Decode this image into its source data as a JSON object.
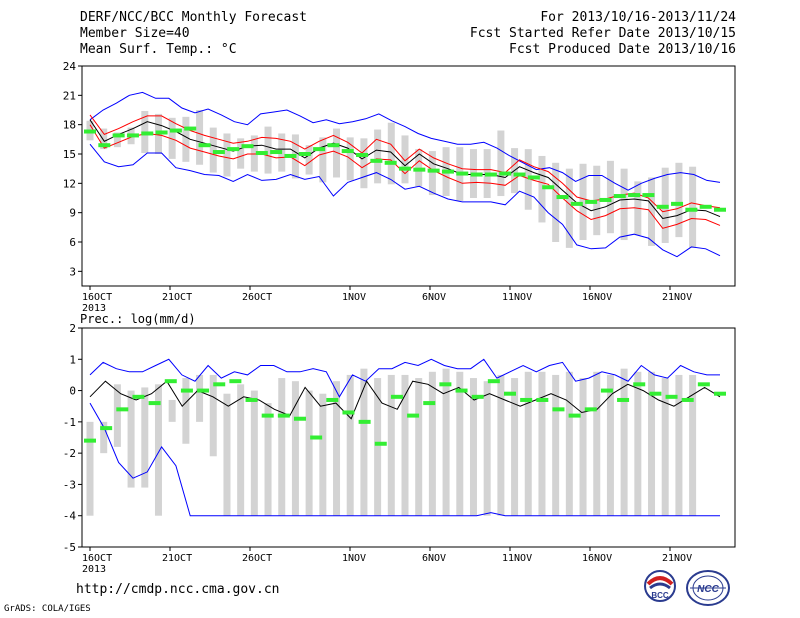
{
  "header": {
    "left": [
      "DERF/NCC/BCC Monthly Forecast",
      "Member Size=40",
      "Mean Surf. Temp.: °C"
    ],
    "right": [
      "For 2013/10/16-2013/11/24",
      "Fcst Started Refer Date 2013/10/15",
      "Fcst Produced Date 2013/10/16"
    ]
  },
  "footer": {
    "url": "http://cmdp.ncc.cma.gov.cn",
    "grads": "GrADS: COLA/IGES",
    "logo_left_text": "BCC",
    "logo_right_text": "NCC"
  },
  "colors": {
    "envelope": "#0000ff",
    "spread": "#ff0000",
    "mean": "#000000",
    "box": "#d3d3d3",
    "marker": "#33ee33"
  },
  "chart_data": [
    {
      "type": "box-line",
      "title": "Mean Surf. Temp.: °C",
      "x_tick_labels": [
        "16OCT\n2013",
        "21OCT",
        "26OCT",
        "1NOV",
        "6NOV",
        "11NOV",
        "16NOV",
        "21NOV"
      ],
      "y_ticks": [
        3,
        6,
        9,
        12,
        15,
        18,
        21,
        24
      ],
      "ylim": [
        1.5,
        24
      ],
      "days": 40,
      "series": [
        {
          "name": "max",
          "values": [
            18.5,
            19.5,
            20.2,
            21.0,
            21.3,
            20.7,
            20.7,
            19.7,
            19.2,
            19.6,
            19.0,
            18.3,
            18.0,
            19.1,
            19.3,
            19.5,
            18.9,
            18.2,
            18.5,
            18.1,
            18.3,
            18.6,
            19.1,
            18.4,
            17.8,
            17.1,
            16.6,
            16.3,
            16.0,
            16.0,
            16.2,
            15.6,
            14.8,
            14.1,
            13.4,
            13.6,
            13.1,
            12.2,
            12.8,
            12.8,
            12.0,
            11.3,
            12.0,
            12.5,
            12.9,
            13.1,
            12.9,
            12.3,
            12.1
          ]
        },
        {
          "name": "upper",
          "values": [
            19.0,
            17.0,
            17.6,
            18.3,
            18.9,
            18.9,
            18.1,
            17.4,
            16.9,
            16.5,
            16.1,
            16.3,
            16.7,
            16.6,
            16.3,
            15.5,
            16.3,
            16.9,
            16.2,
            15.1,
            16.5,
            16.0,
            14.3,
            15.5,
            14.6,
            14.0,
            13.5,
            13.4,
            13.4,
            13.1,
            14.4,
            13.7,
            13.2,
            12.0,
            10.6,
            10.2,
            10.4,
            10.8,
            11.0,
            10.5,
            9.1,
            9.4,
            10.0,
            9.7,
            9.5
          ]
        },
        {
          "name": "mean",
          "values": [
            18.5,
            16.3,
            17.0,
            17.6,
            18.3,
            17.9,
            17.3,
            16.5,
            16.1,
            15.7,
            15.3,
            15.8,
            15.9,
            15.5,
            15.5,
            14.6,
            15.6,
            16.1,
            15.6,
            14.5,
            15.4,
            15.2,
            13.8,
            15.0,
            14.0,
            13.5,
            12.9,
            12.9,
            12.9,
            12.6,
            13.7,
            13.1,
            12.6,
            11.3,
            10.0,
            9.2,
            9.6,
            10.3,
            10.4,
            10.2,
            8.4,
            8.7,
            9.3,
            9.2,
            8.6
          ]
        },
        {
          "name": "lower",
          "values": [
            18.0,
            15.6,
            16.2,
            16.8,
            17.1,
            16.9,
            16.4,
            15.6,
            15.2,
            14.8,
            14.5,
            15.0,
            15.0,
            14.6,
            14.7,
            13.8,
            14.9,
            15.3,
            14.7,
            13.6,
            14.5,
            14.4,
            13.0,
            14.3,
            13.3,
            12.6,
            12.0,
            12.1,
            12.0,
            11.8,
            12.8,
            12.3,
            11.9,
            10.5,
            9.2,
            8.3,
            8.7,
            9.4,
            9.5,
            9.3,
            7.4,
            7.8,
            8.4,
            8.3,
            7.7
          ]
        },
        {
          "name": "min",
          "values": [
            16.0,
            14.2,
            13.7,
            13.9,
            15.1,
            15.1,
            13.6,
            13.3,
            12.9,
            12.8,
            12.2,
            12.9,
            12.3,
            12.4,
            12.9,
            12.4,
            12.7,
            10.7,
            12.1,
            12.6,
            13.1,
            12.4,
            11.4,
            11.7,
            11.0,
            10.4,
            10.1,
            10.1,
            10.1,
            9.8,
            11.2,
            10.6,
            9.0,
            7.8,
            5.7,
            5.3,
            5.4,
            6.5,
            6.8,
            6.4,
            5.2,
            4.5,
            5.5,
            5.3,
            4.6
          ]
        },
        {
          "name": "box_top",
          "values": [
            18.4,
            17.6,
            17.2,
            17.7,
            19.4,
            19.1,
            18.7,
            18.8,
            19.5,
            17.7,
            17.1,
            16.6,
            16.9,
            17.8,
            17.1,
            17.0,
            15.9,
            16.7,
            17.6,
            16.7,
            16.6,
            17.5,
            18.2,
            16.9,
            15.5,
            15.3,
            15.7,
            15.7,
            15.5,
            15.5,
            17.4,
            15.6,
            15.5,
            14.8,
            14.1,
            13.5,
            14.0,
            13.8,
            14.3,
            13.5,
            12.2,
            12.6,
            13.6,
            14.1,
            13.7,
            13.9,
            11.5
          ]
        },
        {
          "name": "box_bottom",
          "values": [
            16.4,
            15.5,
            15.7,
            16.0,
            15.1,
            15.0,
            14.5,
            14.2,
            13.9,
            13.1,
            12.7,
            13.5,
            13.2,
            13.0,
            13.2,
            12.5,
            12.9,
            12.1,
            12.6,
            12.3,
            11.5,
            12.0,
            11.9,
            12.0,
            11.7,
            10.8,
            10.7,
            10.2,
            10.5,
            10.5,
            10.7,
            11.0,
            9.3,
            8.0,
            6.0,
            5.4,
            6.2,
            6.7,
            6.9,
            6.2,
            6.7,
            5.6,
            5.9,
            6.5,
            5.4
          ]
        },
        {
          "name": "marker",
          "values": [
            17.3,
            15.9,
            16.9,
            16.9,
            17.1,
            17.2,
            17.4,
            17.6,
            15.9,
            15.2,
            15.5,
            15.8,
            15.1,
            15.2,
            14.8,
            15.0,
            15.5,
            15.9,
            15.3,
            14.9,
            14.3,
            14.1,
            13.5,
            13.4,
            13.3,
            13.2,
            13.0,
            12.9,
            12.9,
            13.0,
            12.9,
            12.6,
            11.6,
            10.6,
            9.9,
            10.1,
            10.3,
            10.7,
            10.8,
            10.8,
            9.6,
            9.9,
            9.3,
            9.6,
            9.3
          ]
        }
      ]
    },
    {
      "type": "box-line",
      "title": "Prec.: log(mm/d)",
      "x_tick_labels": [
        "16OCT\n2013",
        "21OCT",
        "26OCT",
        "1NOV",
        "6NOV",
        "11NOV",
        "16NOV",
        "21NOV"
      ],
      "y_ticks": [
        -5,
        -4,
        -3,
        -2,
        -1,
        0,
        1,
        2
      ],
      "ylim": [
        -5,
        2
      ],
      "days": 40,
      "series": [
        {
          "name": "max",
          "values": [
            0.5,
            0.9,
            0.7,
            0.6,
            0.6,
            0.8,
            1.0,
            0.5,
            0.3,
            0.8,
            0.4,
            0.6,
            0.5,
            0.8,
            0.8,
            0.6,
            0.6,
            0.7,
            0.6,
            -0.2,
            0.5,
            0.3,
            0.7,
            0.7,
            0.9,
            0.8,
            1.0,
            0.8,
            0.7,
            0.7,
            1.0,
            0.4,
            0.6,
            0.8,
            0.6,
            0.8,
            0.9,
            0.3,
            0.4,
            0.6,
            0.5,
            0.3,
            0.8,
            0.5,
            0.4,
            0.8,
            0.6,
            0.5,
            0.5
          ]
        },
        {
          "name": "mean",
          "values": [
            -0.2,
            0.3,
            -0.1,
            -0.3,
            -0.1,
            0.3,
            -0.5,
            0.0,
            -0.2,
            -0.5,
            -0.2,
            -0.3,
            -0.6,
            -0.8,
            0.1,
            -0.5,
            -0.4,
            -0.9,
            0.3,
            -0.4,
            -0.6,
            0.3,
            0.2,
            -0.1,
            0.1,
            -0.3,
            -0.1,
            -0.3,
            -0.5,
            -0.3,
            -0.1,
            -0.3,
            -0.7,
            -0.6,
            -0.1,
            0.2,
            0.0,
            -0.3,
            -0.5,
            -0.2,
            0.1,
            -0.2
          ]
        },
        {
          "name": "min",
          "values": [
            -0.4,
            -1.2,
            -2.3,
            -2.8,
            -2.6,
            -1.8,
            -2.4,
            -4.0,
            -4.0,
            -4.0,
            -4.0,
            -4.0,
            -4.0,
            -4.0,
            -4.0,
            -4.0,
            -4.0,
            -4.0,
            -4.0,
            -4.0,
            -4.0,
            -4.0,
            -4.0,
            -4.0,
            -4.0,
            -4.0,
            -4.0,
            -4.0,
            -3.9,
            -4.0,
            -4.0,
            -4.0,
            -4.0,
            -4.0,
            -4.0,
            -4.0,
            -4.0,
            -4.0,
            -4.0,
            -4.0,
            -4.0,
            -4.0,
            -4.0,
            -4.0,
            -4.0
          ]
        },
        {
          "name": "box_top",
          "values": [
            -1.0,
            -1.0,
            0.2,
            0.0,
            0.1,
            0.2,
            -0.3,
            0.4,
            0.5,
            0.5,
            -0.1,
            0.2,
            0.0,
            -0.4,
            0.4,
            0.3,
            0.0,
            -0.1,
            0.3,
            0.5,
            0.7,
            0.4,
            0.5,
            0.5,
            0.4,
            0.6,
            0.7,
            0.6,
            0.4,
            0.3,
            0.5,
            0.4,
            0.6,
            0.6,
            0.5,
            0.6,
            0.4,
            0.6,
            0.5,
            0.7,
            0.6,
            0.6,
            0.4,
            0.5,
            0.5,
            0.6,
            0.6
          ]
        },
        {
          "name": "box_bottom",
          "values": [
            -4.0,
            -2.0,
            -1.8,
            -3.1,
            -3.1,
            -4.0,
            -1.0,
            -1.7,
            -1.0,
            -2.1,
            -4.0,
            -4.0,
            -4.0,
            -4.0,
            -4.0,
            -4.0,
            -4.0,
            -4.0,
            -4.0,
            -4.0,
            -4.0,
            -4.0,
            -4.0,
            -4.0,
            -4.0,
            -4.0,
            -4.0,
            -4.0,
            -4.0,
            -4.0,
            -4.0,
            -4.0,
            -4.0,
            -4.0,
            -4.0,
            -4.0,
            -4.0,
            -4.0,
            -4.0,
            -4.0,
            -4.0,
            -4.0,
            -4.0,
            -4.0,
            -4.0
          ]
        },
        {
          "name": "marker",
          "values": [
            -1.6,
            -1.2,
            -0.6,
            -0.2,
            -0.4,
            0.3,
            0.0,
            0.0,
            0.2,
            0.3,
            -0.3,
            -0.8,
            -0.8,
            -0.9,
            -1.5,
            -0.3,
            -0.7,
            -1.0,
            -1.7,
            -0.2,
            -0.8,
            -0.4,
            0.2,
            0.0,
            -0.2,
            0.3,
            -0.1,
            -0.3,
            -0.3,
            -0.6,
            -0.8,
            -0.6,
            0.0,
            -0.3,
            0.2,
            -0.1,
            -0.2,
            -0.3,
            0.2,
            -0.1
          ]
        }
      ]
    }
  ]
}
